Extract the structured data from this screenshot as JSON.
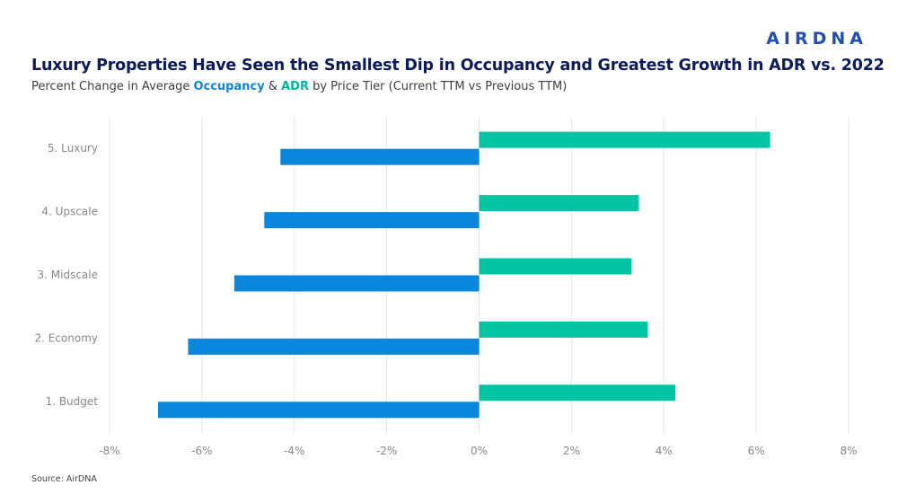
{
  "brand": {
    "logo_text": "AIRDNA"
  },
  "header": {
    "title": "Luxury Properties Have Seen the Smallest Dip in Occupancy and Greatest Growth in ADR vs. 2022",
    "subtitle_prefix": "Percent Change in Average ",
    "subtitle_occ": "Occupancy",
    "subtitle_amp": " & ",
    "subtitle_adr": "ADR",
    "subtitle_suffix": " by Price Tier (Current TTM vs Previous TTM)"
  },
  "footer": {
    "source": "Source: AirDNA"
  },
  "chart_data": {
    "type": "bar",
    "orientation": "horizontal",
    "categories": [
      "5. Luxury",
      "4. Upscale",
      "3. Midscale",
      "2. Economy",
      "1. Budget"
    ],
    "series": [
      {
        "name": "ADR",
        "color": "#00c4a2",
        "values": [
          6.3,
          3.45,
          3.3,
          3.65,
          4.25
        ]
      },
      {
        "name": "Occupancy",
        "color": "#0a87dc",
        "values": [
          -4.3,
          -4.65,
          -5.3,
          -6.3,
          -6.95
        ]
      }
    ],
    "xlim": [
      -8,
      8
    ],
    "xticks": [
      -8,
      -6,
      -4,
      -2,
      0,
      2,
      4,
      6,
      8
    ],
    "xtick_labels": [
      "-8%",
      "-6%",
      "-4%",
      "-2%",
      "0%",
      "2%",
      "4%",
      "6%",
      "8%"
    ],
    "grid": true
  }
}
